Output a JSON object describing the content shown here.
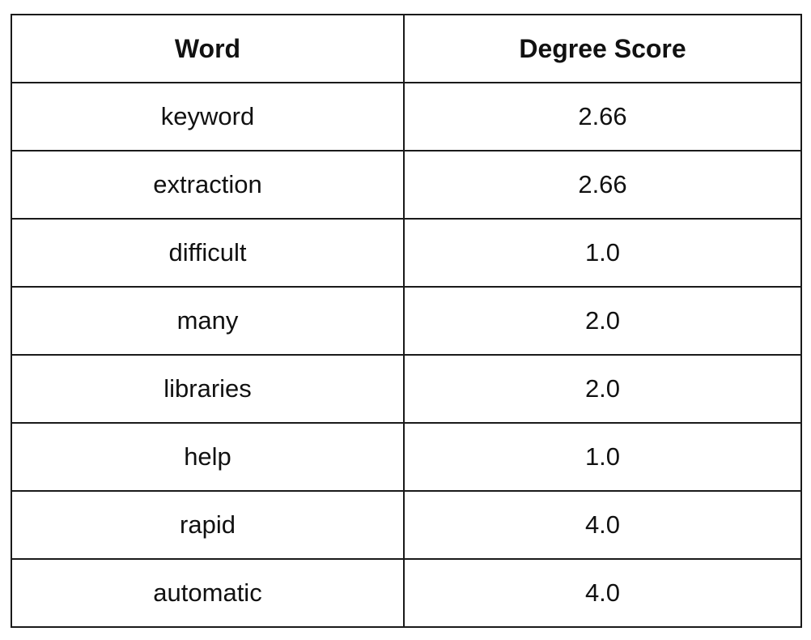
{
  "table": {
    "headers": [
      "Word",
      "Degree Score"
    ],
    "rows": [
      [
        "keyword",
        "2.66"
      ],
      [
        "extraction",
        "2.66"
      ],
      [
        "difficult",
        "1.0"
      ],
      [
        "many",
        "2.0"
      ],
      [
        "libraries",
        "2.0"
      ],
      [
        "help",
        "1.0"
      ],
      [
        "rapid",
        "4.0"
      ],
      [
        "automatic",
        "4.0"
      ]
    ]
  }
}
